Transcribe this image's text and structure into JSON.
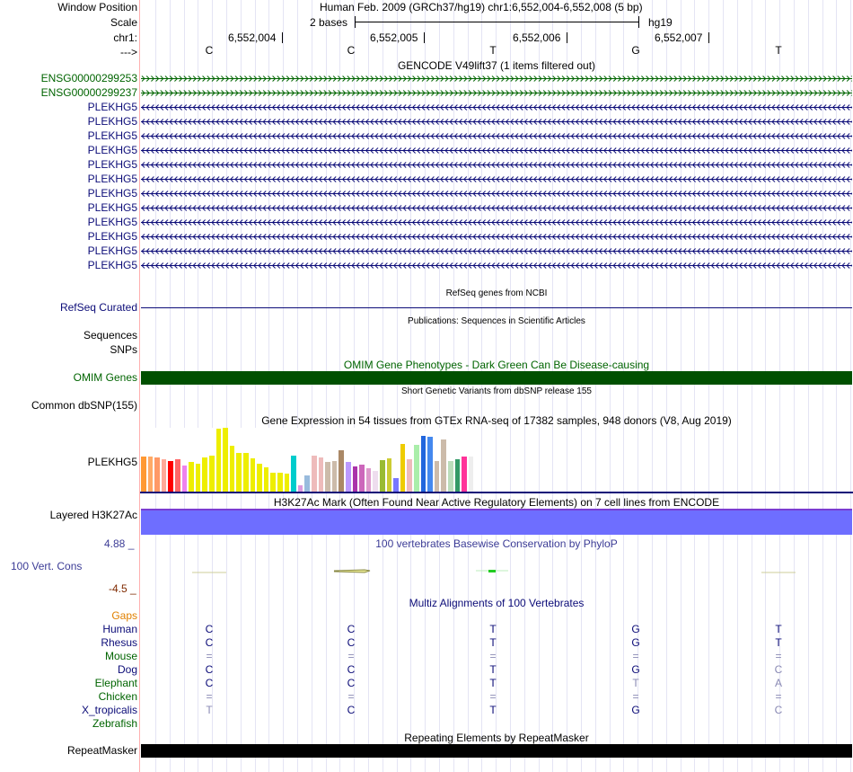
{
  "labels": {
    "window_position": "Window Position",
    "scale": "Scale",
    "chr": "chr1:",
    "strand": "--->",
    "refseq": "RefSeq Curated",
    "sequences": "Sequences",
    "snps": "SNPs",
    "omim": "OMIM Genes",
    "dbsnp": "Common dbSNP(155)",
    "gtex": "PLEKHG5",
    "h3k27ac": "Layered H3K27Ac",
    "phylop": "100 Vert. Cons",
    "phylop_max": "4.88 _",
    "phylop_min": "-4.5 _",
    "repeatmasker": "RepeatMasker"
  },
  "header": {
    "position": "Human Feb. 2009 (GRCh37/hg19)   chr1:6,552,004-6,552,008 (5 bp)",
    "scale_text": "2 bases",
    "assembly": "hg19",
    "coords": [
      "6,552,004",
      "6,552,005",
      "6,552,006",
      "6,552,007"
    ],
    "bases": [
      "C",
      "C",
      "T",
      "G",
      "T"
    ]
  },
  "titles": {
    "gencode": "GENCODE V49lift37 (1 items filtered out)",
    "refseq": "RefSeq genes from NCBI",
    "publications": "Publications: Sequences in Scientific Articles",
    "omim": "OMIM Gene Phenotypes - Dark Green Can Be Disease-causing",
    "dbsnp": "Short Genetic Variants from dbSNP release 155",
    "gtex": "Gene Expression in 54 tissues from GTEx RNA-seq of 17382 samples, 948 donors (V8, Aug 2019)",
    "h3k27ac": "H3K27Ac Mark (Often Found Near Active Regulatory Elements) on 7 cell lines from ENCODE",
    "phylop": "100 vertebrates Basewise Conservation by PhyloP",
    "multiz": "Multiz Alignments of 100 Vertebrates",
    "repeatmasker": "Repeating Elements by RepeatMasker"
  },
  "genes": [
    {
      "name": "ENSG00000299253",
      "strand": "+",
      "color": "#006400"
    },
    {
      "name": "ENSG00000299237",
      "strand": "+",
      "color": "#006400"
    },
    {
      "name": "PLEKHG5",
      "strand": "-",
      "color": "#0c0c78"
    },
    {
      "name": "PLEKHG5",
      "strand": "-",
      "color": "#0c0c78"
    },
    {
      "name": "PLEKHG5",
      "strand": "-",
      "color": "#0c0c78"
    },
    {
      "name": "PLEKHG5",
      "strand": "-",
      "color": "#0c0c78"
    },
    {
      "name": "PLEKHG5",
      "strand": "-",
      "color": "#0c0c78"
    },
    {
      "name": "PLEKHG5",
      "strand": "-",
      "color": "#0c0c78"
    },
    {
      "name": "PLEKHG5",
      "strand": "-",
      "color": "#0c0c78"
    },
    {
      "name": "PLEKHG5",
      "strand": "-",
      "color": "#0c0c78"
    },
    {
      "name": "PLEKHG5",
      "strand": "-",
      "color": "#0c0c78"
    },
    {
      "name": "PLEKHG5",
      "strand": "-",
      "color": "#0c0c78"
    },
    {
      "name": "PLEKHG5",
      "strand": "-",
      "color": "#0c0c78"
    },
    {
      "name": "PLEKHG5",
      "strand": "-",
      "color": "#0c0c78"
    }
  ],
  "gtex_bars": [
    {
      "v": 0.55,
      "c": "#ff9933"
    },
    {
      "v": 0.55,
      "c": "#ffaa66"
    },
    {
      "v": 0.53,
      "c": "#ff9966"
    },
    {
      "v": 0.5,
      "c": "#ffaa99"
    },
    {
      "v": 0.48,
      "c": "#ff0000"
    },
    {
      "v": 0.5,
      "c": "#ff6666"
    },
    {
      "v": 0.41,
      "c": "#ee82ee"
    },
    {
      "v": 0.46,
      "c": "#eeee00"
    },
    {
      "v": 0.44,
      "c": "#eeee00"
    },
    {
      "v": 0.53,
      "c": "#eeee00"
    },
    {
      "v": 0.57,
      "c": "#eeee00"
    },
    {
      "v": 0.98,
      "c": "#eeee00"
    },
    {
      "v": 1.0,
      "c": "#eeee00"
    },
    {
      "v": 0.72,
      "c": "#eeee00"
    },
    {
      "v": 0.6,
      "c": "#eeee00"
    },
    {
      "v": 0.6,
      "c": "#eeee00"
    },
    {
      "v": 0.52,
      "c": "#eeee00"
    },
    {
      "v": 0.44,
      "c": "#eeee00"
    },
    {
      "v": 0.38,
      "c": "#eeee00"
    },
    {
      "v": 0.3,
      "c": "#eeee00"
    },
    {
      "v": 0.29,
      "c": "#eeee00"
    },
    {
      "v": 0.28,
      "c": "#eeee00"
    },
    {
      "v": 0.56,
      "c": "#00cccc"
    },
    {
      "v": 0.1,
      "c": "#dd99dd"
    },
    {
      "v": 0.26,
      "c": "#99bbdd"
    },
    {
      "v": 0.56,
      "c": "#eebbbb"
    },
    {
      "v": 0.53,
      "c": "#eebbbb"
    },
    {
      "v": 0.46,
      "c": "#ccbbaa"
    },
    {
      "v": 0.48,
      "c": "#ccbbaa"
    },
    {
      "v": 0.65,
      "c": "#aa8866"
    },
    {
      "v": 0.46,
      "c": "#bb99ff"
    },
    {
      "v": 0.4,
      "c": "#aa33aa"
    },
    {
      "v": 0.42,
      "c": "#cc66bb"
    },
    {
      "v": 0.37,
      "c": "#dd99cc"
    },
    {
      "v": 0.33,
      "c": "#eeddee"
    },
    {
      "v": 0.49,
      "c": "#99bb33"
    },
    {
      "v": 0.52,
      "c": "#cccc33"
    },
    {
      "v": 0.21,
      "c": "#7777ff"
    },
    {
      "v": 0.75,
      "c": "#eecc00"
    },
    {
      "v": 0.5,
      "c": "#eebbbb"
    },
    {
      "v": 0.73,
      "c": "#aaeeaa"
    },
    {
      "v": 0.88,
      "c": "#2266dd"
    },
    {
      "v": 0.86,
      "c": "#4488ee"
    },
    {
      "v": 0.48,
      "c": "#ccbbaa"
    },
    {
      "v": 0.82,
      "c": "#ccbbaa"
    },
    {
      "v": 0.48,
      "c": "#bbddbb"
    },
    {
      "v": 0.5,
      "c": "#339966"
    },
    {
      "v": 0.55,
      "c": "#ff3399"
    },
    {
      "v": 0.55,
      "c": "#eeeeee"
    }
  ],
  "multiz": {
    "gaps_label": "Gaps",
    "species": [
      {
        "name": "Human",
        "color": "#0c0c78",
        "bases": [
          "C",
          "C",
          "T",
          "G",
          "T"
        ],
        "dim": [
          false,
          false,
          false,
          false,
          false
        ]
      },
      {
        "name": "Rhesus",
        "color": "#0c0c78",
        "bases": [
          "C",
          "C",
          "T",
          "G",
          "T"
        ],
        "dim": [
          false,
          false,
          false,
          false,
          false
        ]
      },
      {
        "name": "Mouse",
        "color": "#006400",
        "bases": [
          "=",
          "=",
          "=",
          "=",
          "="
        ],
        "dim": [
          true,
          true,
          true,
          true,
          true
        ]
      },
      {
        "name": "Dog",
        "color": "#0c0c78",
        "bases": [
          "C",
          "C",
          "T",
          "G",
          "C"
        ],
        "dim": [
          false,
          false,
          false,
          false,
          true
        ]
      },
      {
        "name": "Elephant",
        "color": "#006400",
        "bases": [
          "C",
          "C",
          "T",
          "T",
          "A"
        ],
        "dim": [
          false,
          false,
          false,
          true,
          true
        ]
      },
      {
        "name": "Chicken",
        "color": "#006400",
        "bases": [
          "=",
          "=",
          "=",
          "=",
          "="
        ],
        "dim": [
          true,
          true,
          true,
          true,
          true
        ]
      },
      {
        "name": "X_tropicalis",
        "color": "#0c0c78",
        "bases": [
          "T",
          "C",
          "T",
          "G",
          "C"
        ],
        "dim": [
          true,
          false,
          false,
          false,
          true
        ]
      },
      {
        "name": "Zebrafish",
        "color": "#006400",
        "bases": [
          "",
          "",
          "",
          "",
          ""
        ],
        "dim": [
          false,
          false,
          false,
          false,
          false
        ]
      }
    ]
  },
  "colors": {
    "blue_label": "#0c0c78",
    "green_label": "#006400",
    "omim_bar": "#005000",
    "h3k27ac_bar": "#6e6eff",
    "phylop_title": "#3c3c96",
    "phylop_min": "#7f2a00",
    "gaps": "#e08000"
  }
}
